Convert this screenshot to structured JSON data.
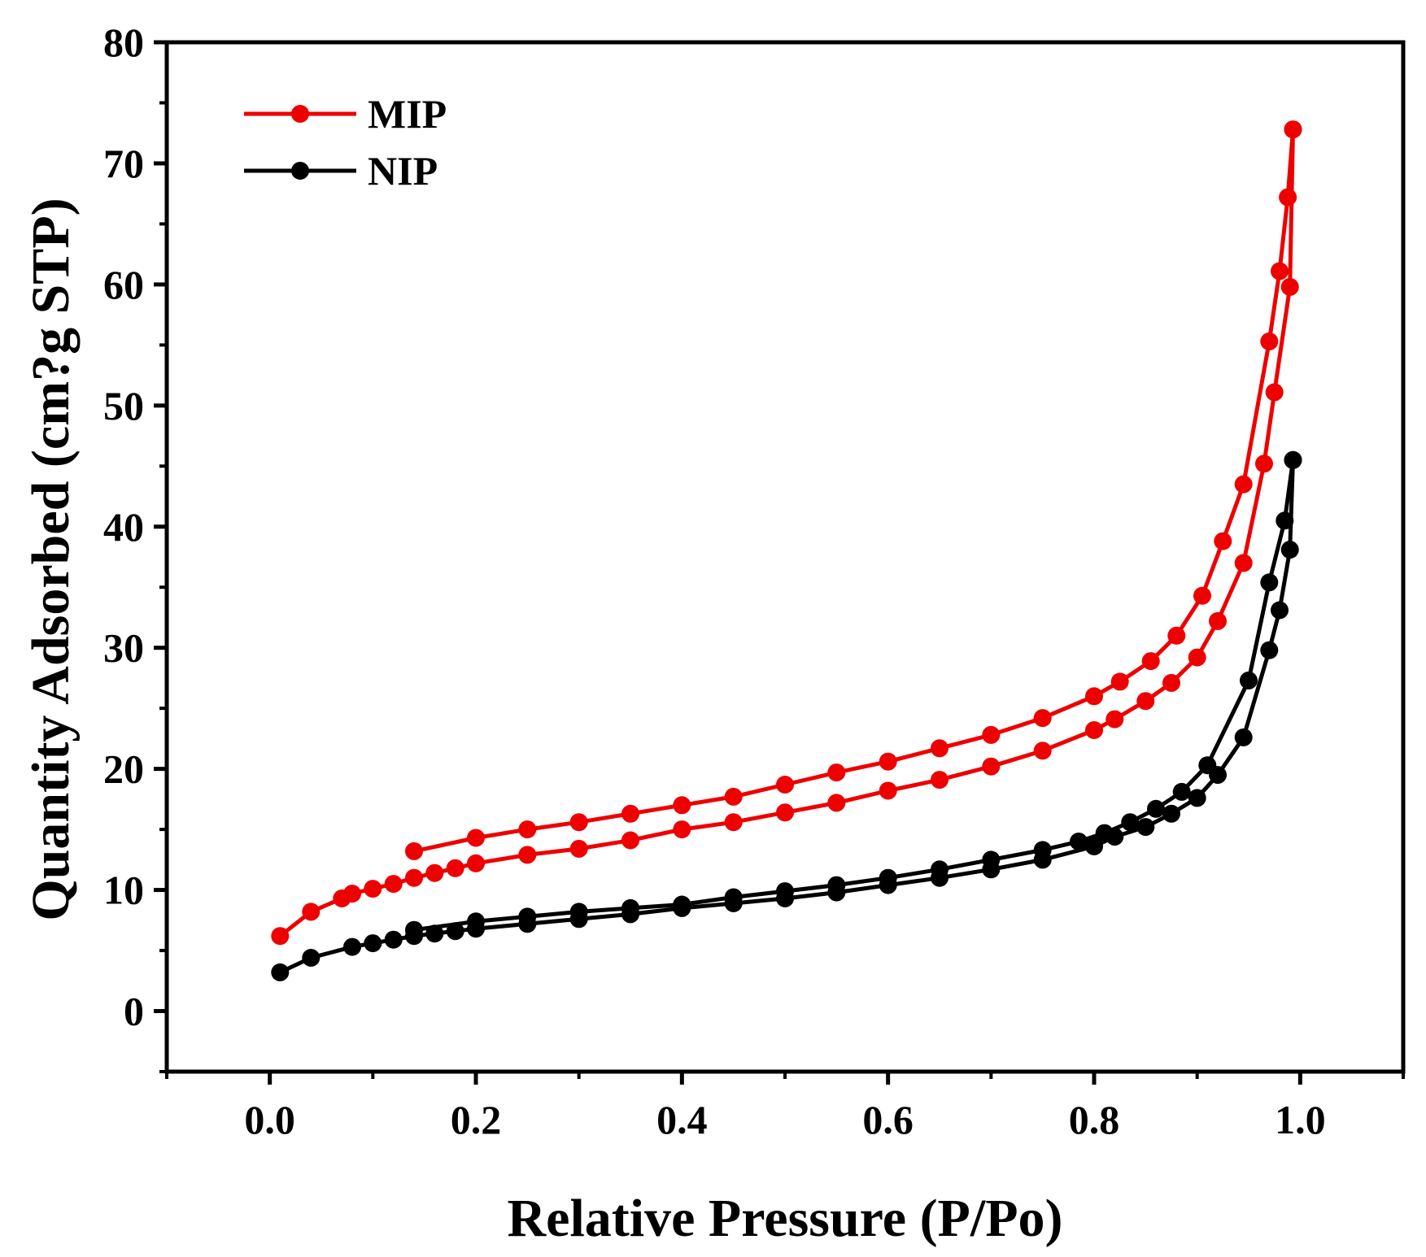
{
  "chart_data": {
    "type": "line",
    "xlabel": "Relative Pressure (P/Po)",
    "ylabel": "Quantity Adsorbed (cm?g STP)",
    "xlim": [
      -0.1,
      1.1
    ],
    "ylim": [
      -5,
      80
    ],
    "xticks": [
      0.0,
      0.2,
      0.4,
      0.6,
      0.8,
      1.0
    ],
    "xtick_labels": [
      "0.0",
      "0.2",
      "0.4",
      "0.6",
      "0.8",
      "1.0"
    ],
    "yticks": [
      0,
      10,
      20,
      30,
      40,
      50,
      60,
      70,
      80
    ],
    "ytick_labels": [
      "0",
      "10",
      "20",
      "30",
      "40",
      "50",
      "60",
      "70",
      "80"
    ],
    "legend_position": "top-left",
    "grid": false,
    "series": [
      {
        "name": "MIP",
        "color": "#ee0000",
        "marker": "circle",
        "branches": [
          {
            "branch": "adsorption",
            "points": [
              [
                0.01,
                6.2
              ],
              [
                0.04,
                8.2
              ],
              [
                0.07,
                9.3
              ],
              [
                0.08,
                9.7
              ],
              [
                0.1,
                10.1
              ],
              [
                0.12,
                10.5
              ],
              [
                0.14,
                11.0
              ],
              [
                0.16,
                11.4
              ],
              [
                0.18,
                11.8
              ],
              [
                0.2,
                12.2
              ],
              [
                0.25,
                12.9
              ],
              [
                0.3,
                13.4
              ],
              [
                0.35,
                14.1
              ],
              [
                0.4,
                15.0
              ],
              [
                0.45,
                15.6
              ],
              [
                0.5,
                16.4
              ],
              [
                0.55,
                17.2
              ],
              [
                0.6,
                18.2
              ],
              [
                0.65,
                19.1
              ],
              [
                0.7,
                20.2
              ],
              [
                0.75,
                21.5
              ],
              [
                0.8,
                23.2
              ],
              [
                0.82,
                24.1
              ],
              [
                0.85,
                25.6
              ],
              [
                0.875,
                27.1
              ],
              [
                0.9,
                29.2
              ],
              [
                0.92,
                32.2
              ],
              [
                0.945,
                37.0
              ],
              [
                0.965,
                45.2
              ],
              [
                0.975,
                51.1
              ],
              [
                0.99,
                59.8
              ],
              [
                0.993,
                72.8
              ]
            ]
          },
          {
            "branch": "desorption",
            "points": [
              [
                0.993,
                72.8
              ],
              [
                0.988,
                67.2
              ],
              [
                0.98,
                61.1
              ],
              [
                0.97,
                55.3
              ],
              [
                0.945,
                43.5
              ],
              [
                0.925,
                38.8
              ],
              [
                0.905,
                34.3
              ],
              [
                0.88,
                31.0
              ],
              [
                0.855,
                28.9
              ],
              [
                0.825,
                27.2
              ],
              [
                0.8,
                26.0
              ],
              [
                0.75,
                24.2
              ],
              [
                0.7,
                22.8
              ],
              [
                0.65,
                21.7
              ],
              [
                0.6,
                20.6
              ],
              [
                0.55,
                19.7
              ],
              [
                0.5,
                18.7
              ],
              [
                0.45,
                17.7
              ],
              [
                0.4,
                17.0
              ],
              [
                0.35,
                16.3
              ],
              [
                0.3,
                15.6
              ],
              [
                0.25,
                15.0
              ],
              [
                0.2,
                14.3
              ],
              [
                0.14,
                13.2
              ]
            ]
          }
        ]
      },
      {
        "name": "NIP",
        "color": "#000000",
        "marker": "circle",
        "branches": [
          {
            "branch": "adsorption",
            "points": [
              [
                0.01,
                3.2
              ],
              [
                0.04,
                4.4
              ],
              [
                0.08,
                5.3
              ],
              [
                0.1,
                5.6
              ],
              [
                0.12,
                5.9
              ],
              [
                0.14,
                6.2
              ],
              [
                0.16,
                6.4
              ],
              [
                0.18,
                6.6
              ],
              [
                0.2,
                6.8
              ],
              [
                0.25,
                7.2
              ],
              [
                0.3,
                7.6
              ],
              [
                0.35,
                8.0
              ],
              [
                0.4,
                8.5
              ],
              [
                0.45,
                8.9
              ],
              [
                0.5,
                9.3
              ],
              [
                0.55,
                9.8
              ],
              [
                0.6,
                10.4
              ],
              [
                0.65,
                11.0
              ],
              [
                0.7,
                11.7
              ],
              [
                0.75,
                12.5
              ],
              [
                0.8,
                13.6
              ],
              [
                0.82,
                14.4
              ],
              [
                0.85,
                15.2
              ],
              [
                0.875,
                16.3
              ],
              [
                0.9,
                17.6
              ],
              [
                0.92,
                19.5
              ],
              [
                0.945,
                22.6
              ],
              [
                0.97,
                29.8
              ],
              [
                0.98,
                33.1
              ],
              [
                0.99,
                38.1
              ],
              [
                0.993,
                45.5
              ]
            ]
          },
          {
            "branch": "desorption",
            "points": [
              [
                0.993,
                45.5
              ],
              [
                0.985,
                40.5
              ],
              [
                0.97,
                35.4
              ],
              [
                0.95,
                27.3
              ],
              [
                0.91,
                20.3
              ],
              [
                0.885,
                18.1
              ],
              [
                0.86,
                16.7
              ],
              [
                0.835,
                15.6
              ],
              [
                0.81,
                14.7
              ],
              [
                0.785,
                14.0
              ],
              [
                0.75,
                13.3
              ],
              [
                0.7,
                12.5
              ],
              [
                0.65,
                11.7
              ],
              [
                0.6,
                11.0
              ],
              [
                0.55,
                10.4
              ],
              [
                0.5,
                9.9
              ],
              [
                0.45,
                9.4
              ],
              [
                0.4,
                8.8
              ],
              [
                0.35,
                8.5
              ],
              [
                0.3,
                8.2
              ],
              [
                0.25,
                7.8
              ],
              [
                0.2,
                7.4
              ],
              [
                0.14,
                6.7
              ]
            ]
          }
        ]
      }
    ]
  }
}
